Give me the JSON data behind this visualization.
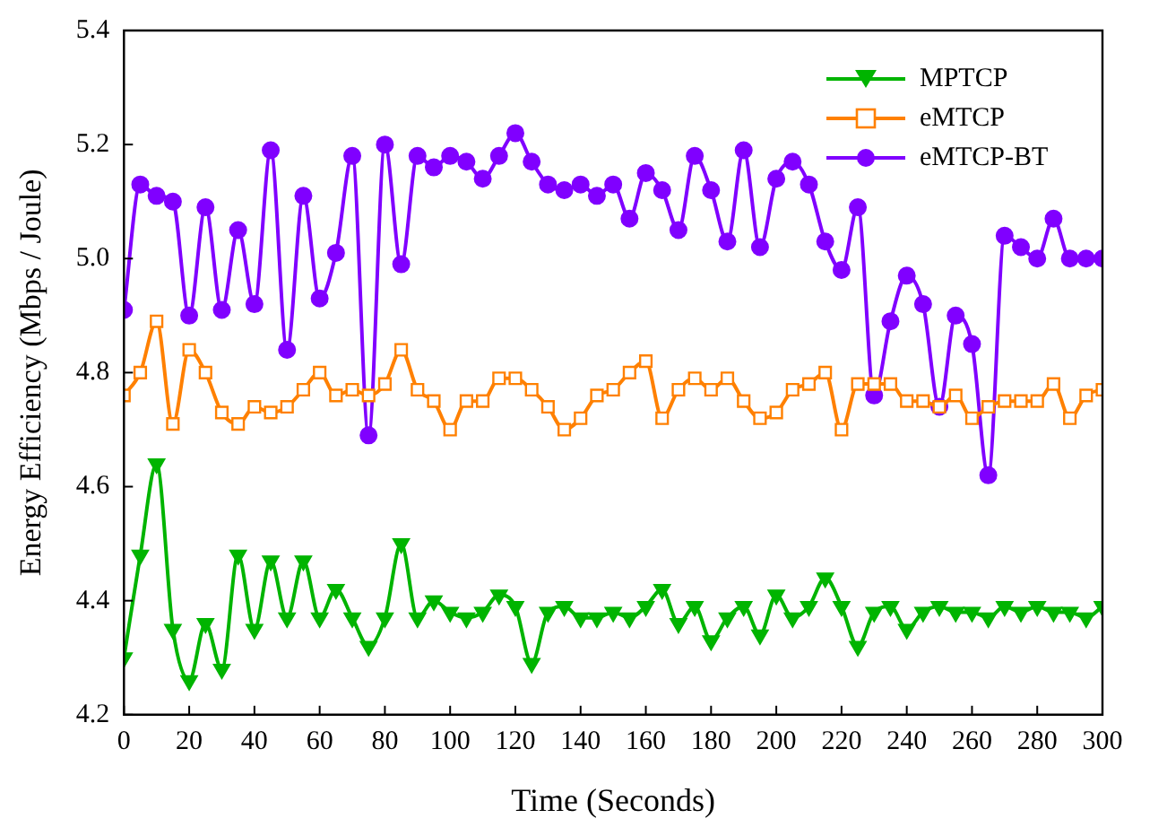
{
  "chart_data": {
    "type": "line",
    "xlabel": "Time (Seconds)",
    "ylabel": "Energy Efficiency (Mbps / Joule)",
    "x": [
      0,
      5,
      10,
      15,
      20,
      25,
      30,
      35,
      40,
      45,
      50,
      55,
      60,
      65,
      70,
      75,
      80,
      85,
      90,
      95,
      100,
      105,
      110,
      115,
      120,
      125,
      130,
      135,
      140,
      145,
      150,
      155,
      160,
      165,
      170,
      175,
      180,
      185,
      190,
      195,
      200,
      205,
      210,
      215,
      220,
      225,
      230,
      235,
      240,
      245,
      250,
      255,
      260,
      265,
      270,
      275,
      280,
      285,
      290,
      295,
      300
    ],
    "series": [
      {
        "name": "MPTCP",
        "color": "#00b400",
        "marker": "triangle",
        "values": [
          4.3,
          4.48,
          4.64,
          4.35,
          4.26,
          4.36,
          4.28,
          4.48,
          4.35,
          4.47,
          4.37,
          4.47,
          4.37,
          4.42,
          4.37,
          4.32,
          4.37,
          4.5,
          4.37,
          4.4,
          4.38,
          4.37,
          4.38,
          4.41,
          4.39,
          4.29,
          4.38,
          4.39,
          4.37,
          4.37,
          4.38,
          4.37,
          4.39,
          4.42,
          4.36,
          4.39,
          4.33,
          4.37,
          4.39,
          4.34,
          4.41,
          4.37,
          4.39,
          4.44,
          4.39,
          4.32,
          4.38,
          4.39,
          4.35,
          4.38,
          4.39,
          4.38,
          4.38,
          4.37,
          4.39,
          4.38,
          4.39,
          4.38,
          4.38,
          4.37,
          4.39
        ]
      },
      {
        "name": "eMTCP",
        "color": "#ff8000",
        "marker": "square",
        "values": [
          4.76,
          4.8,
          4.89,
          4.71,
          4.84,
          4.8,
          4.73,
          4.71,
          4.74,
          4.73,
          4.74,
          4.77,
          4.8,
          4.76,
          4.77,
          4.76,
          4.78,
          4.84,
          4.77,
          4.75,
          4.7,
          4.75,
          4.75,
          4.79,
          4.79,
          4.77,
          4.74,
          4.7,
          4.72,
          4.76,
          4.77,
          4.8,
          4.82,
          4.72,
          4.77,
          4.79,
          4.77,
          4.79,
          4.75,
          4.72,
          4.73,
          4.77,
          4.78,
          4.8,
          4.7,
          4.78,
          4.78,
          4.78,
          4.75,
          4.75,
          4.74,
          4.76,
          4.72,
          4.74,
          4.75,
          4.75,
          4.75,
          4.78,
          4.72,
          4.76,
          4.77
        ]
      },
      {
        "name": "eMTCP-BT",
        "color": "#8000ff",
        "marker": "circle",
        "values": [
          4.91,
          5.13,
          5.11,
          5.1,
          4.9,
          5.09,
          4.91,
          5.05,
          4.92,
          5.19,
          4.84,
          5.11,
          4.93,
          5.01,
          5.18,
          4.69,
          5.2,
          4.99,
          5.18,
          5.16,
          5.18,
          5.17,
          5.14,
          5.18,
          5.22,
          5.17,
          5.13,
          5.12,
          5.13,
          5.11,
          5.13,
          5.07,
          5.15,
          5.12,
          5.05,
          5.18,
          5.12,
          5.03,
          5.19,
          5.02,
          5.14,
          5.17,
          5.13,
          5.03,
          4.98,
          5.09,
          4.76,
          4.89,
          4.97,
          4.92,
          4.74,
          4.9,
          4.85,
          4.62,
          5.04,
          5.02,
          5.0,
          5.07,
          5.0,
          5.0,
          5.0
        ]
      }
    ],
    "xlim": [
      0,
      300
    ],
    "xticks": [
      0,
      20,
      40,
      60,
      80,
      100,
      120,
      140,
      160,
      180,
      200,
      220,
      240,
      260,
      280,
      300
    ],
    "ylim": [
      4.2,
      5.4
    ],
    "yticks": [
      {
        "value": 4.2,
        "label": "4.2"
      },
      {
        "value": 4.4,
        "label": "4.4"
      },
      {
        "value": 4.6,
        "label": "4.6"
      },
      {
        "value": 4.8,
        "label": "4.8"
      },
      {
        "value": 5.0,
        "label": "5.0"
      },
      {
        "value": 5.2,
        "label": "5.2"
      },
      {
        "value": 5.4,
        "label": "5.4"
      }
    ],
    "grid": false,
    "legend": "top right",
    "line_style": "solid"
  }
}
